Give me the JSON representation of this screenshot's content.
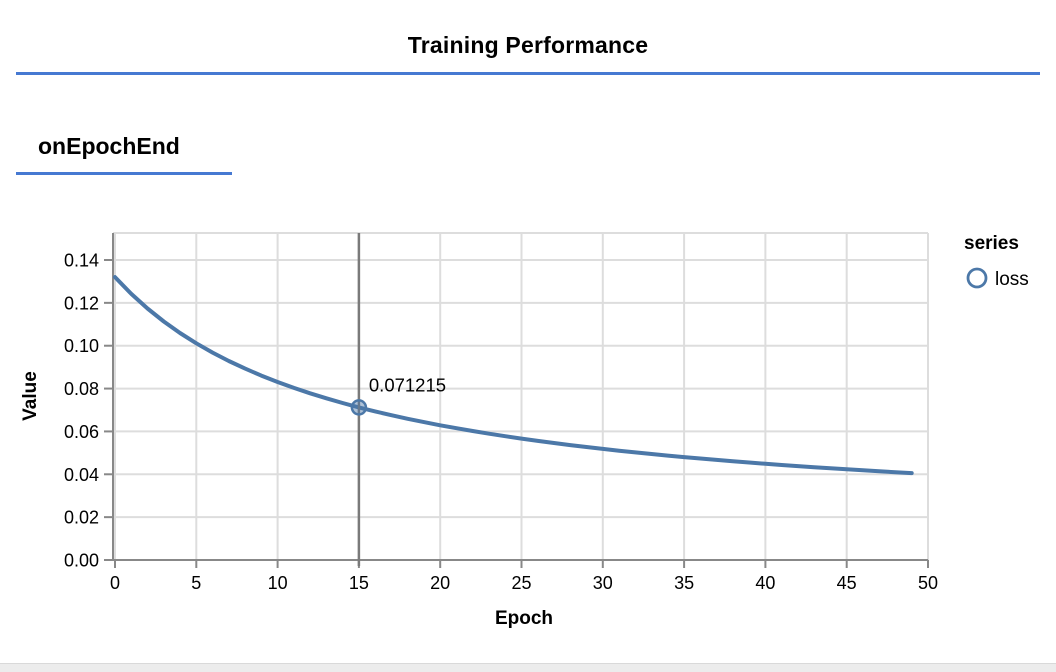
{
  "page": {
    "title": "Training Performance",
    "section_heading": "onEpochEnd"
  },
  "colors": {
    "accent_blue": "#4679d2",
    "series_blue": "#4c78a8",
    "grid": "#dddddd",
    "axis": "#888888",
    "hover_rule": "#7a7a7a",
    "text": "#000000",
    "footer_bg": "#ececec"
  },
  "chart_data": {
    "type": "line",
    "xlabel": "Epoch",
    "ylabel": "Value",
    "xlim": [
      0,
      50
    ],
    "ylim": [
      0,
      0.145
    ],
    "grid": true,
    "x_tick_values": [
      0,
      5,
      10,
      15,
      20,
      25,
      30,
      35,
      40,
      45,
      50
    ],
    "x_tick_labels": [
      "0",
      "5",
      "10",
      "15",
      "20",
      "25",
      "30",
      "35",
      "40",
      "45",
      "50"
    ],
    "y_tick_values": [
      0,
      0.02,
      0.04,
      0.06,
      0.08,
      0.1,
      0.12,
      0.14
    ],
    "y_tick_labels": [
      "0.00",
      "0.02",
      "0.04",
      "0.06",
      "0.08",
      "0.10",
      "0.12",
      "0.14"
    ],
    "legend": {
      "position": "right",
      "title": "series",
      "entries": [
        {
          "label": "loss",
          "marker": "open-circle",
          "color": "#4c78a8"
        }
      ]
    },
    "series": [
      {
        "name": "loss",
        "x_start": 0,
        "x_step": 1,
        "values": [
          0.132022,
          0.124201,
          0.117353,
          0.111309,
          0.105934,
          0.101124,
          0.096794,
          0.092875,
          0.089311,
          0.086057,
          0.083073,
          0.080328,
          0.077794,
          0.075446,
          0.073266,
          0.071215,
          0.069342,
          0.067569,
          0.065907,
          0.064345,
          0.062876,
          0.06149,
          0.060181,
          0.058942,
          0.057769,
          0.056656,
          0.055598,
          0.054592,
          0.053634,
          0.052721,
          0.051848,
          0.051015,
          0.050217,
          0.049454,
          0.048722,
          0.048021,
          0.047347,
          0.0467,
          0.046077,
          0.045478,
          0.044901,
          0.044345,
          0.043809,
          0.043292,
          0.042793,
          0.04231,
          0.041844,
          0.041393,
          0.040956,
          0.040533
        ]
      }
    ],
    "highlight": {
      "series": "loss",
      "x": 15,
      "value": 0.071215,
      "label": "0.071215"
    }
  }
}
